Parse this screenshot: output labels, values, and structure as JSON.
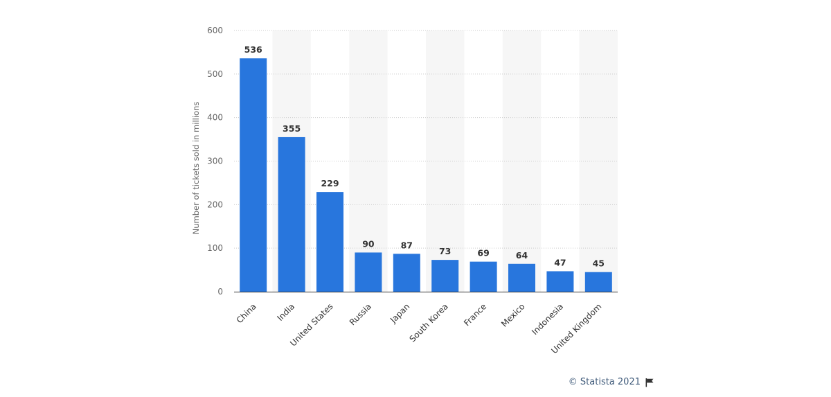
{
  "chart_data": {
    "type": "bar",
    "categories": [
      "China",
      "India",
      "United States",
      "Russia",
      "Japan",
      "South Korea",
      "France",
      "Mexico",
      "Indonesia",
      "United Kingdom"
    ],
    "values": [
      536,
      355,
      229,
      90,
      87,
      73,
      69,
      64,
      47,
      45
    ],
    "title": "",
    "xlabel": "",
    "ylabel": "Number of tickets sold in millions",
    "ylim": [
      0,
      600
    ],
    "yticks": [
      0,
      100,
      200,
      300,
      400,
      500,
      600
    ],
    "grid": true,
    "bar_color": "#2876dd",
    "band_color": "#f6f6f6"
  },
  "credit": {
    "text": "© Statista 2021",
    "icon": "flag-icon"
  }
}
